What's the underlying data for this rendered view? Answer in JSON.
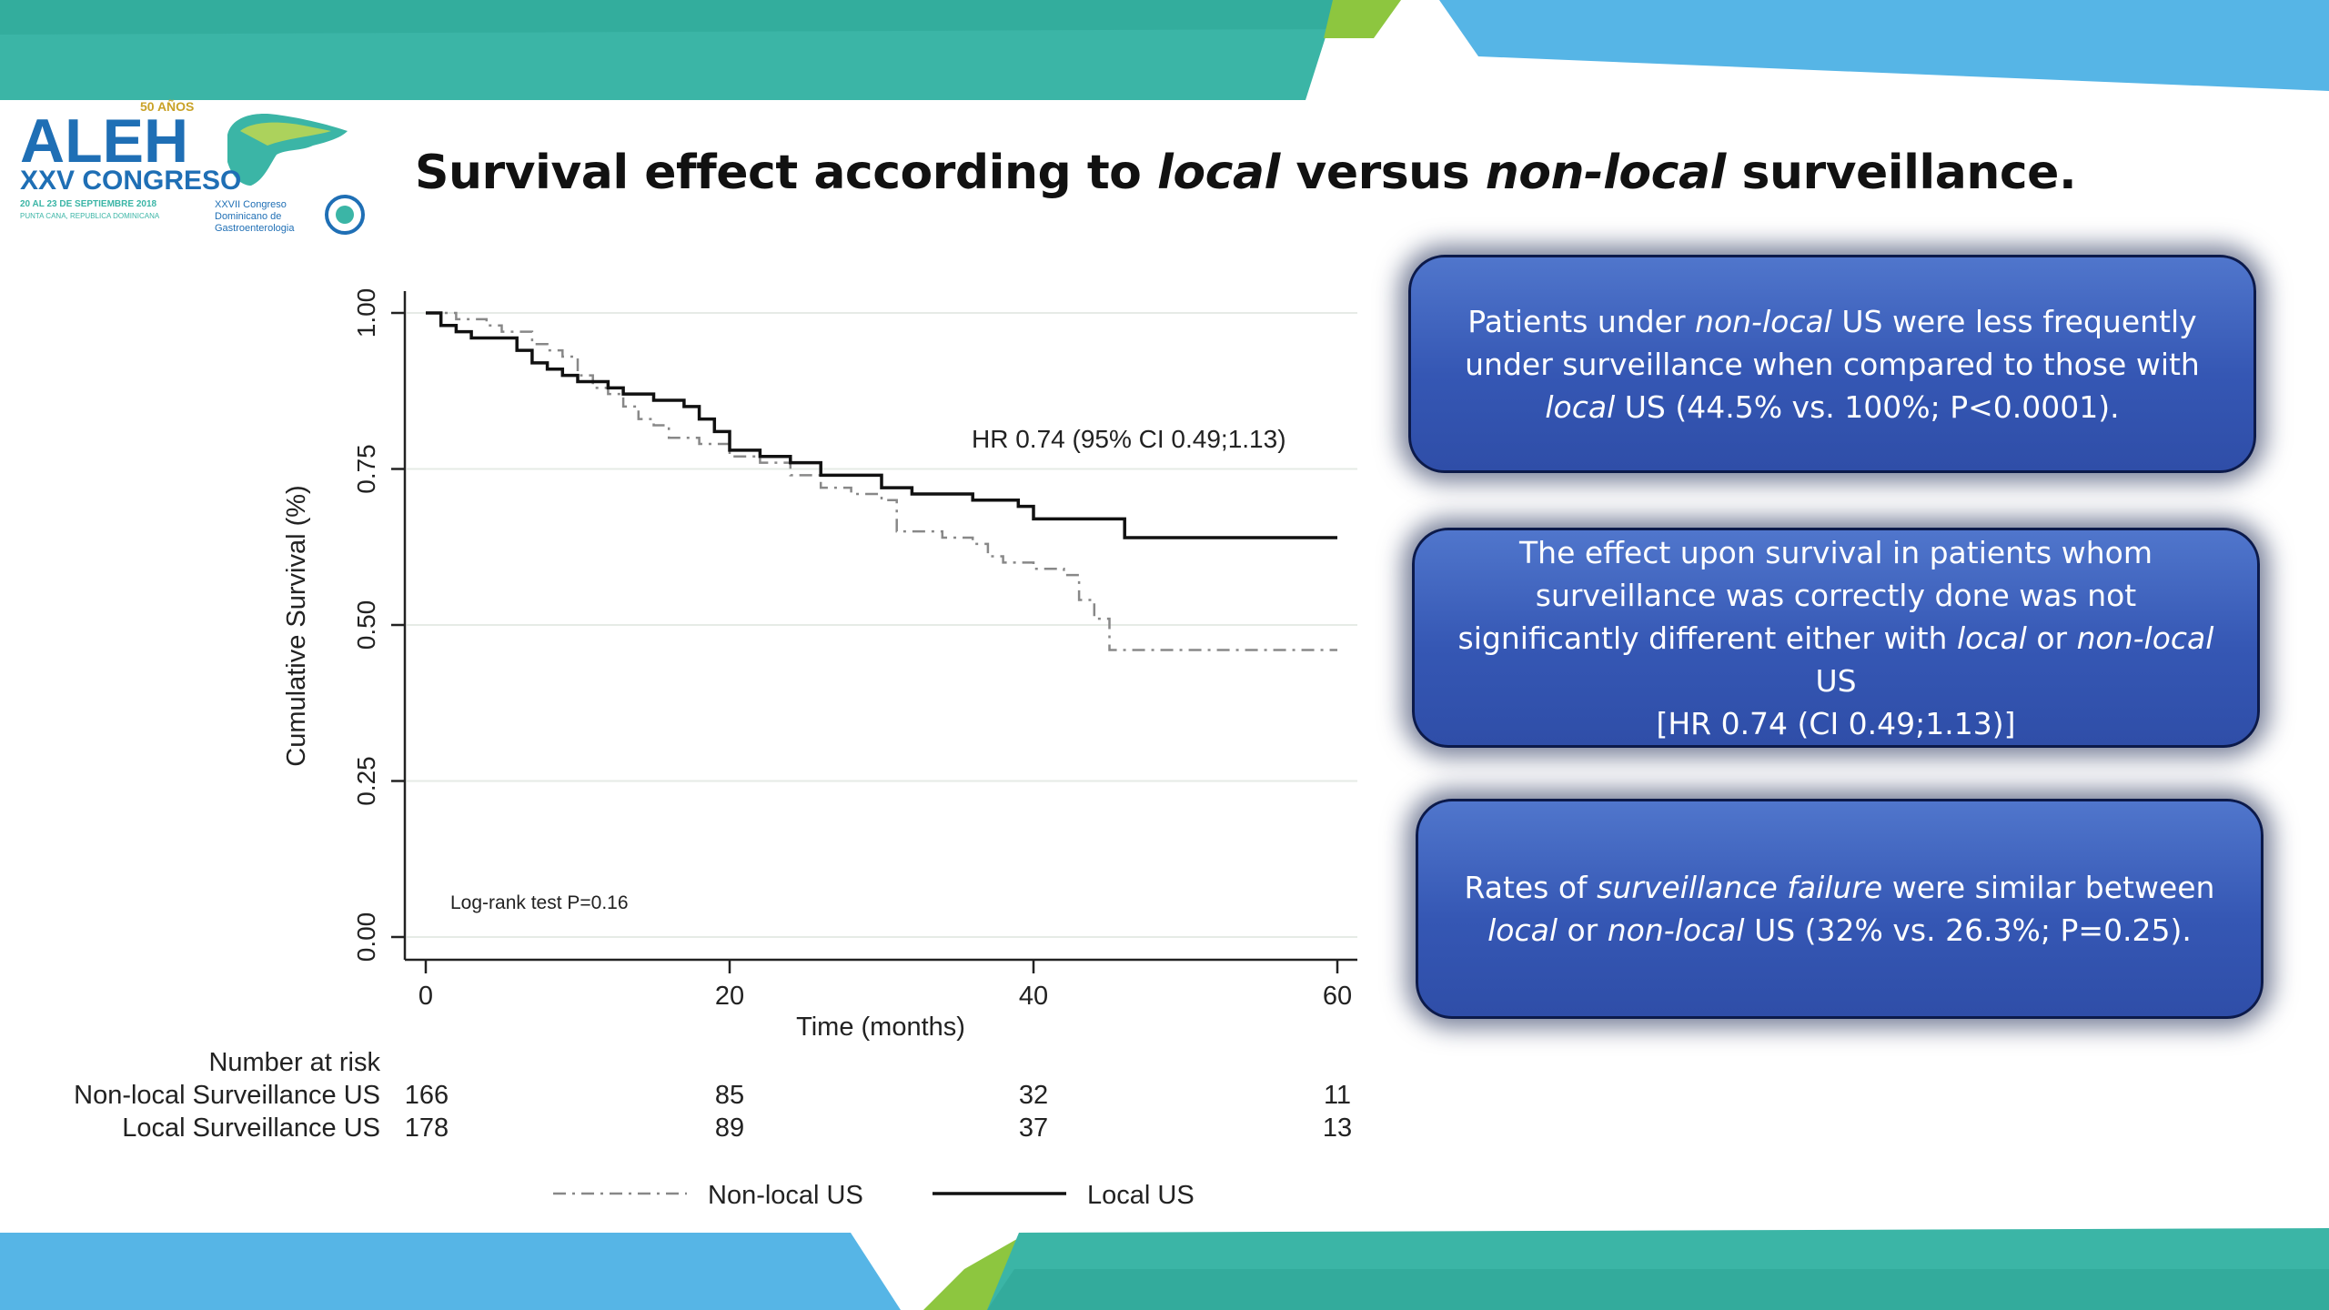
{
  "logo": {
    "badge": "50 AÑOS",
    "name": "ALEH",
    "congress": "XXV CONGRESO",
    "dates": "20 AL 23 DE SEPTIEMBRE 2018",
    "place": "PUNTA CANA, REPUBLICA DOMINICANA",
    "partner_line1": "XXVII Congreso",
    "partner_line2": "Dominicano de",
    "partner_line3": "Gastroenterologia"
  },
  "title": {
    "part1": "Survival effect according to ",
    "part2": "local",
    "part3": " versus ",
    "part4": "non-local",
    "part5": " surveillance."
  },
  "boxes": {
    "box1": {
      "a": "Patients under ",
      "b": "non-local",
      "c": " US were less frequently under surveillance when compared to those with ",
      "d": "local",
      "e": " US (44.5% vs. 100%; P<0.0001)."
    },
    "box2": {
      "a": "The effect upon survival in patients whom surveillance was correctly done was not significantly different either with ",
      "b": "local",
      "c": " or ",
      "d": "non-local",
      "e": " US",
      "f": "[HR 0.74 (CI 0.49;1.13)]"
    },
    "box3": {
      "a": "Rates of ",
      "b": "surveillance failure",
      "c": " were similar between ",
      "d": "local",
      "e": " or ",
      "f": "non-local",
      "g": " US (32% vs. 26.3%; P=0.25)."
    }
  },
  "colors": {
    "teal": "#3bb5a6",
    "light_blue": "#56b5e6",
    "green": "#8dc63f",
    "box_blue": "#3a5cb8",
    "box_border": "#0c1a4a"
  },
  "chart_data": {
    "type": "line",
    "subtype": "kaplan-meier",
    "xlabel": "Time (months)",
    "ylabel": "Cumulative Survival (%)",
    "xlim": [
      0,
      60
    ],
    "ylim": [
      0,
      1
    ],
    "xticks": [
      0,
      20,
      40,
      60
    ],
    "yticks": [
      "0.00",
      "0.25",
      "0.50",
      "0.75",
      "1.00"
    ],
    "grid": true,
    "legend_position": "bottom",
    "annotations": [
      "HR 0.74 (95% CI 0.49;1.13)",
      "Log-rank test P=0.16"
    ],
    "series": [
      {
        "name": "Non-local US",
        "style": "dash-dot",
        "color": "#888888",
        "x": [
          0,
          1,
          2,
          4,
          5,
          6,
          7,
          8,
          9,
          10,
          11,
          12,
          13,
          14,
          15,
          16,
          17,
          18,
          20,
          22,
          24,
          26,
          28,
          30,
          31,
          34,
          36,
          37,
          38,
          40,
          42,
          43,
          44,
          45,
          60
        ],
        "y": [
          1.0,
          1.0,
          0.99,
          0.98,
          0.97,
          0.97,
          0.95,
          0.94,
          0.93,
          0.9,
          0.88,
          0.87,
          0.85,
          0.83,
          0.82,
          0.8,
          0.8,
          0.79,
          0.77,
          0.76,
          0.74,
          0.72,
          0.71,
          0.7,
          0.65,
          0.64,
          0.63,
          0.61,
          0.6,
          0.59,
          0.58,
          0.54,
          0.51,
          0.46,
          0.46
        ]
      },
      {
        "name": "Local US",
        "style": "solid",
        "color": "#111111",
        "x": [
          0,
          1,
          2,
          3,
          6,
          7,
          8,
          9,
          10,
          12,
          13,
          15,
          17,
          18,
          19,
          20,
          22,
          24,
          26,
          30,
          32,
          36,
          39,
          40,
          42,
          46,
          60
        ],
        "y": [
          1.0,
          0.98,
          0.97,
          0.96,
          0.94,
          0.92,
          0.91,
          0.9,
          0.89,
          0.88,
          0.87,
          0.86,
          0.85,
          0.83,
          0.81,
          0.78,
          0.77,
          0.76,
          0.74,
          0.72,
          0.71,
          0.7,
          0.69,
          0.67,
          0.67,
          0.64,
          0.64
        ]
      }
    ],
    "risk_table": {
      "title": "Number at risk",
      "times": [
        0,
        20,
        40,
        60
      ],
      "rows": [
        {
          "label": "Non-local Surveillance US",
          "values": [
            166,
            85,
            32,
            11
          ]
        },
        {
          "label": "Local Surveillance US",
          "values": [
            178,
            89,
            37,
            13
          ]
        }
      ]
    }
  }
}
